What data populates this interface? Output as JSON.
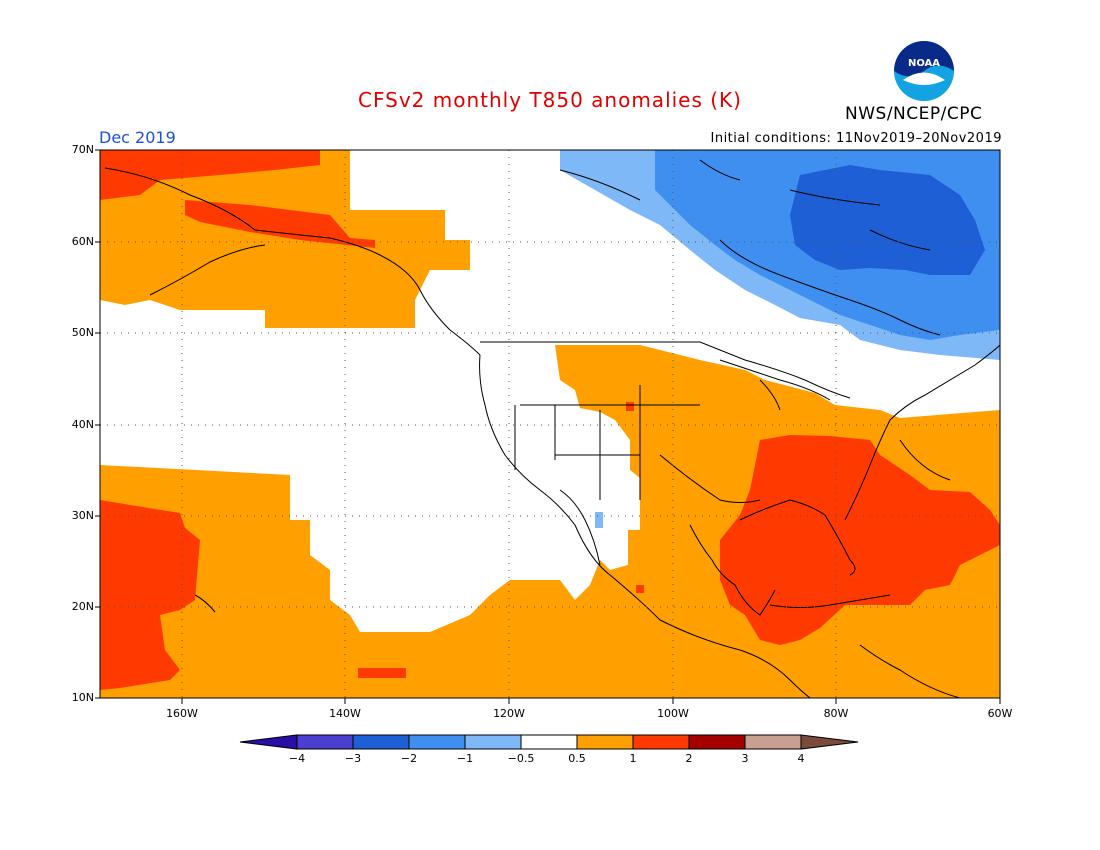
{
  "title": "CFSv2 monthly T850 anomalies (K)",
  "org": "NWS/NCEP/CPC",
  "logo_text": "NOAA",
  "month": "Dec 2019",
  "initial_conditions": "Initial conditions: 11Nov2019–20Nov2019",
  "lat_labels": [
    "70N",
    "60N",
    "50N",
    "40N",
    "30N",
    "20N",
    "10N"
  ],
  "lon_labels": [
    "160W",
    "140W",
    "120W",
    "100W",
    "80W",
    "60W"
  ],
  "colorbar": {
    "labels": [
      "−4",
      "−3",
      "−2",
      "−1",
      "−0.5",
      "0.5",
      "1",
      "2",
      "3",
      "4"
    ],
    "colors": [
      "#2a0fa6",
      "#4a3fd0",
      "#1f5fd6",
      "#3f8ff0",
      "#7fb8f7",
      "#ffffff",
      "#ff9f00",
      "#ff3a00",
      "#a40000",
      "#c8a090",
      "#7a4a3a"
    ]
  }
}
